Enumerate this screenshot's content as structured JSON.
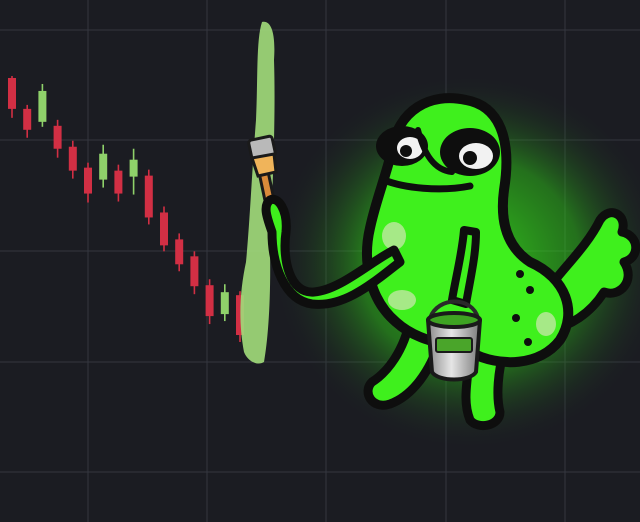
{
  "scene": {
    "background_color": "#1b1c22",
    "grid_color": "#34363f",
    "bull_color": "#8fd16a",
    "bear_color": "#d22f44",
    "paint_color": "#9fd97a",
    "character_color": "#3ff01d",
    "glow_color": "#3cff1a"
  },
  "chart_data": {
    "type": "candlestick",
    "title": "",
    "xlabel": "",
    "ylabel": "",
    "grid": true,
    "candles": [
      {
        "o": 0.8,
        "h": 1.0,
        "l": -3.2,
        "c": -2.3
      },
      {
        "o": -2.3,
        "h": -1.9,
        "l": -5.2,
        "c": -4.4
      },
      {
        "o": -3.6,
        "h": 0.2,
        "l": -4.1,
        "c": -0.5
      },
      {
        "o": -4.0,
        "h": -3.4,
        "l": -7.2,
        "c": -6.3
      },
      {
        "o": -6.1,
        "h": -5.5,
        "l": -9.3,
        "c": -8.5
      },
      {
        "o": -8.2,
        "h": -7.7,
        "l": -11.7,
        "c": -10.8
      },
      {
        "o": -9.4,
        "h": -5.9,
        "l": -10.2,
        "c": -6.8
      },
      {
        "o": -8.5,
        "h": -7.9,
        "l": -11.6,
        "c": -10.8
      },
      {
        "o": -9.1,
        "h": -6.3,
        "l": -10.9,
        "c": -7.4
      },
      {
        "o": -9.0,
        "h": -8.4,
        "l": -13.9,
        "c": -13.2
      },
      {
        "o": -12.7,
        "h": -12.1,
        "l": -16.6,
        "c": -16.0
      },
      {
        "o": -15.4,
        "h": -14.8,
        "l": -18.6,
        "c": -17.9
      },
      {
        "o": -17.1,
        "h": -16.6,
        "l": -20.9,
        "c": -20.1
      },
      {
        "o": -20.0,
        "h": -19.4,
        "l": -23.9,
        "c": -23.1
      },
      {
        "o": -22.9,
        "h": -19.9,
        "l": -23.6,
        "c": -20.7
      },
      {
        "o": -21.0,
        "h": -20.6,
        "l": -25.7,
        "c": -25.0
      }
    ]
  },
  "icons": {
    "brush": "paintbrush-icon",
    "bucket": "paint-bucket-icon"
  }
}
